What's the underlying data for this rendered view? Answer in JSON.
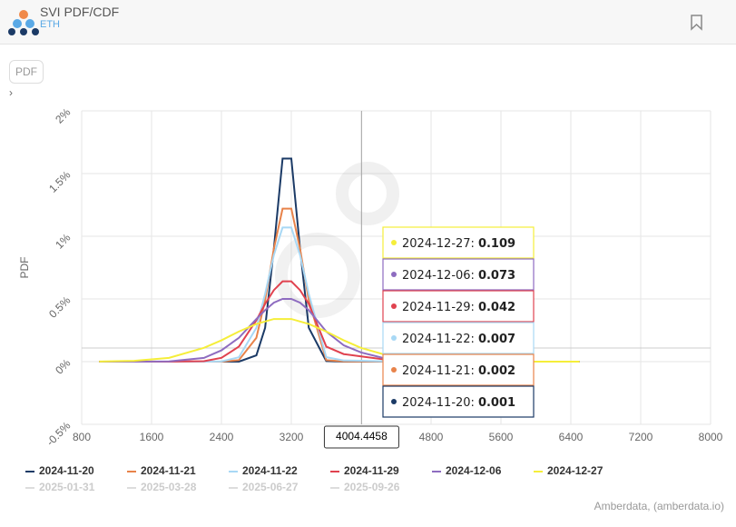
{
  "header": {
    "title": "SVI PDF/CDF",
    "subtitle": "ETH",
    "button": "PDF"
  },
  "chart_data": {
    "type": "line",
    "y_label": "PDF",
    "credits": "Amberdata, (amberdata.io)",
    "grid": true,
    "x": [
      1000,
      1400,
      1800,
      2200,
      2400,
      2600,
      2800,
      2900,
      3000,
      3100,
      3200,
      3300,
      3400,
      3600,
      3800,
      4000,
      4400,
      4800,
      5600,
      6500
    ],
    "xlim": [
      800,
      8000
    ],
    "xticks": [
      800,
      1600,
      2400,
      3200,
      4000,
      4800,
      5600,
      6400,
      7200,
      8000
    ],
    "ylim": [
      -0.5,
      2
    ],
    "yticks": [
      {
        "value": -0.5,
        "label": "-0.5%"
      },
      {
        "value": 0,
        "label": "0%"
      },
      {
        "value": 0.5,
        "label": "0.5%"
      },
      {
        "value": 1,
        "label": "1%"
      },
      {
        "value": 1.5,
        "label": "1.5%"
      },
      {
        "value": 2,
        "label": "2%"
      }
    ],
    "series": [
      {
        "name": "2024-11-20",
        "color": "#1b3a66",
        "values": [
          0,
          0,
          0,
          0,
          0,
          0,
          0.05,
          0.27,
          0.9,
          1.62,
          1.62,
          0.9,
          0.27,
          0.004,
          0,
          0.001,
          0,
          0,
          0,
          0
        ]
      },
      {
        "name": "2024-11-21",
        "color": "#e8834a",
        "values": [
          0,
          0,
          0,
          0,
          0,
          0.012,
          0.19,
          0.49,
          0.9,
          1.22,
          1.22,
          0.9,
          0.49,
          0.012,
          0.002,
          0.002,
          0,
          0,
          0,
          0
        ]
      },
      {
        "name": "2024-11-22",
        "color": "#a8d8f5",
        "values": [
          0,
          0,
          0,
          0,
          0.002,
          0.035,
          0.27,
          0.54,
          0.85,
          1.07,
          1.07,
          0.85,
          0.54,
          0.035,
          0.009,
          0.007,
          0,
          0,
          0,
          0
        ]
      },
      {
        "name": "2024-11-29",
        "color": "#e0424f",
        "values": [
          0,
          0,
          0,
          0.004,
          0.03,
          0.12,
          0.33,
          0.46,
          0.57,
          0.64,
          0.64,
          0.57,
          0.46,
          0.12,
          0.06,
          0.042,
          0.005,
          0,
          0,
          0
        ]
      },
      {
        "name": "2024-12-06",
        "color": "#8e6cc0",
        "values": [
          0,
          0,
          0.002,
          0.03,
          0.09,
          0.19,
          0.34,
          0.41,
          0.47,
          0.5,
          0.5,
          0.47,
          0.41,
          0.24,
          0.13,
          0.073,
          0.004,
          0,
          0,
          0
        ]
      },
      {
        "name": "2024-12-27",
        "color": "#f5ee3a",
        "values": [
          0.001,
          0.006,
          0.03,
          0.11,
          0.17,
          0.24,
          0.3,
          0.32,
          0.34,
          0.34,
          0.34,
          0.32,
          0.3,
          0.24,
          0.17,
          0.109,
          0.03,
          0.006,
          0,
          0
        ]
      }
    ],
    "inactive_legend": [
      "2025-01-31",
      "2025-03-28",
      "2025-06-27",
      "2025-09-26"
    ],
    "crosshair": {
      "x": 4004.4458
    },
    "tooltip": [
      {
        "label": "2024-12-27:",
        "value": 0.109,
        "color": "#f5ee3a"
      },
      {
        "label": "2024-12-06:",
        "value": 0.073,
        "color": "#8e6cc0"
      },
      {
        "label": "2024-11-29:",
        "value": 0.042,
        "color": "#e0424f"
      },
      {
        "label": "2024-11-22:",
        "value": 0.007,
        "color": "#a8d8f5"
      },
      {
        "label": "2024-11-21:",
        "value": 0.002,
        "color": "#e8834a"
      },
      {
        "label": "2024-11-20:",
        "value": 0.001,
        "color": "#1b3a66"
      }
    ]
  }
}
